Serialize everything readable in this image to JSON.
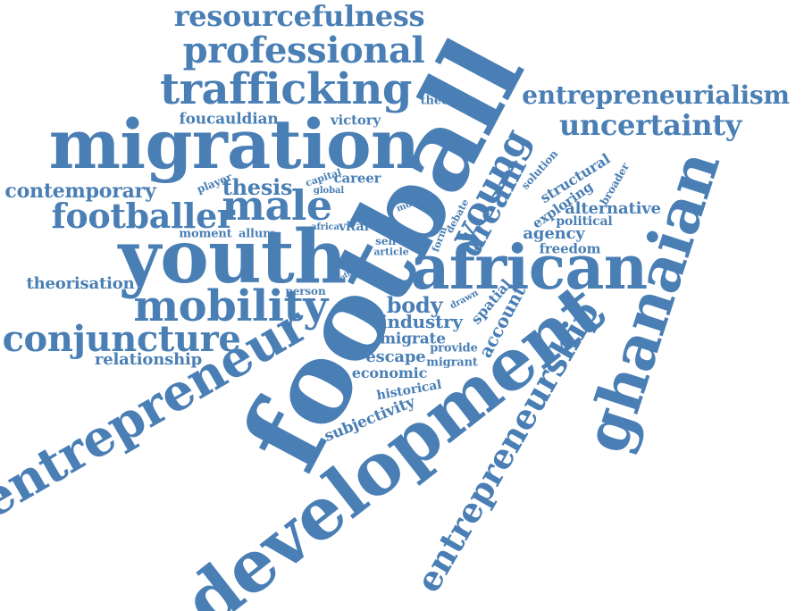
{
  "theme": {
    "word_color": "#4a7fb5",
    "background": "#ffffff"
  },
  "words": [
    "football",
    "development",
    "african",
    "youth",
    "migration",
    "ghanaian",
    "entrepreneur",
    "trafficking",
    "professional",
    "resourcefulness",
    "entrepreneurship",
    "young",
    "entrepreneurialism",
    "uncertainty",
    "mobility",
    "conjuncture",
    "footballer",
    "male",
    "dream",
    "contemporary",
    "thesis",
    "theorisation",
    "relationship",
    "body",
    "industry",
    "migrate",
    "escape",
    "economic",
    "account",
    "spatial",
    "historical",
    "subjectivity",
    "migrant",
    "provide",
    "agency",
    "freedom",
    "alternative",
    "political",
    "exploring",
    "structural",
    "broader",
    "solution",
    "foucauldian",
    "victory",
    "theories",
    "player",
    "capital",
    "global",
    "career",
    "more",
    "moment",
    "allure",
    "africa",
    "vital",
    "self",
    "article",
    "form",
    "debate",
    "drawn",
    "person",
    "offer",
    "is"
  ]
}
